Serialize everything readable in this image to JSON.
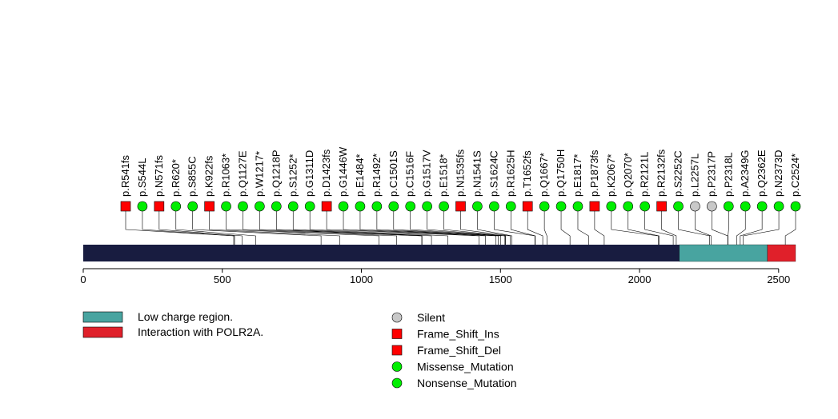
{
  "chart_data": {
    "type": "lollipop",
    "title": "",
    "xlabel": "",
    "ylabel": "",
    "protein_length": 2561,
    "xlim": [
      0,
      2561
    ],
    "xticks": [
      0,
      500,
      1000,
      1500,
      2000,
      2500
    ],
    "xtick_labels": [
      "0",
      "500",
      "1000",
      "1500",
      "2000",
      "2500"
    ],
    "colors": {
      "backbone": "#181C40",
      "low_charge": "#48A4A0",
      "polr2a": "#E0202A",
      "silent": "#C8C8C8",
      "frameshift": "#FF0000",
      "missense": "#00EE00",
      "nonsense": "#00EE00"
    },
    "regions": [
      {
        "name": "Low charge region.",
        "start": 2143,
        "end": 2460,
        "color_key": "low_charge"
      },
      {
        "name": "Interaction with POLR2A.",
        "start": 2460,
        "end": 2561,
        "color_key": "polr2a"
      }
    ],
    "mutations": [
      {
        "label": "p.R541fs",
        "position": 541,
        "type": "Frame_Shift_Del"
      },
      {
        "label": "p.S544L",
        "position": 544,
        "type": "Missense_Mutation"
      },
      {
        "label": "p.N571fs",
        "position": 571,
        "type": "Frame_Shift_Del"
      },
      {
        "label": "p.R620*",
        "position": 620,
        "type": "Nonsense_Mutation"
      },
      {
        "label": "p.S855C",
        "position": 855,
        "type": "Missense_Mutation"
      },
      {
        "label": "p.K922fs",
        "position": 922,
        "type": "Frame_Shift_Del"
      },
      {
        "label": "p.R1063*",
        "position": 1063,
        "type": "Nonsense_Mutation"
      },
      {
        "label": "p.Q1127E",
        "position": 1127,
        "type": "Missense_Mutation"
      },
      {
        "label": "p.W1217*",
        "position": 1217,
        "type": "Nonsense_Mutation"
      },
      {
        "label": "p.Q1218P",
        "position": 1218,
        "type": "Missense_Mutation"
      },
      {
        "label": "p.S1252*",
        "position": 1252,
        "type": "Nonsense_Mutation"
      },
      {
        "label": "p.G1311D",
        "position": 1311,
        "type": "Missense_Mutation"
      },
      {
        "label": "p.D1423fs",
        "position": 1423,
        "type": "Frame_Shift_Del"
      },
      {
        "label": "p.G1446W",
        "position": 1446,
        "type": "Missense_Mutation"
      },
      {
        "label": "p.E1484*",
        "position": 1484,
        "type": "Nonsense_Mutation"
      },
      {
        "label": "p.R1492*",
        "position": 1492,
        "type": "Nonsense_Mutation"
      },
      {
        "label": "p.C1501S",
        "position": 1501,
        "type": "Missense_Mutation"
      },
      {
        "label": "p.C1516F",
        "position": 1516,
        "type": "Missense_Mutation"
      },
      {
        "label": "p.G1517V",
        "position": 1517,
        "type": "Missense_Mutation"
      },
      {
        "label": "p.E1518*",
        "position": 1518,
        "type": "Nonsense_Mutation"
      },
      {
        "label": "p.N1535fs",
        "position": 1535,
        "type": "Frame_Shift_Del"
      },
      {
        "label": "p.N1541S",
        "position": 1541,
        "type": "Missense_Mutation"
      },
      {
        "label": "p.S1624C",
        "position": 1624,
        "type": "Missense_Mutation"
      },
      {
        "label": "p.R1625H",
        "position": 1625,
        "type": "Missense_Mutation"
      },
      {
        "label": "p.T1652fs",
        "position": 1652,
        "type": "Frame_Shift_Del"
      },
      {
        "label": "p.Q1667*",
        "position": 1667,
        "type": "Nonsense_Mutation"
      },
      {
        "label": "p.Q1750H",
        "position": 1750,
        "type": "Missense_Mutation"
      },
      {
        "label": "p.E1817*",
        "position": 1817,
        "type": "Nonsense_Mutation"
      },
      {
        "label": "p.P1873fs",
        "position": 1873,
        "type": "Frame_Shift_Del"
      },
      {
        "label": "p.K2067*",
        "position": 2067,
        "type": "Nonsense_Mutation"
      },
      {
        "label": "p.Q2070*",
        "position": 2070,
        "type": "Nonsense_Mutation"
      },
      {
        "label": "p.R2121L",
        "position": 2121,
        "type": "Missense_Mutation"
      },
      {
        "label": "p.R2132fs",
        "position": 2132,
        "type": "Frame_Shift_Del"
      },
      {
        "label": "p.S2252C",
        "position": 2252,
        "type": "Missense_Mutation"
      },
      {
        "label": "p.L2257L",
        "position": 2257,
        "type": "Silent"
      },
      {
        "label": "p.P2317P",
        "position": 2317,
        "type": "Silent"
      },
      {
        "label": "p.P2318L",
        "position": 2318,
        "type": "Missense_Mutation"
      },
      {
        "label": "p.A2349G",
        "position": 2349,
        "type": "Missense_Mutation"
      },
      {
        "label": "p.Q2362E",
        "position": 2362,
        "type": "Missense_Mutation"
      },
      {
        "label": "p.N2373D",
        "position": 2373,
        "type": "Missense_Mutation"
      },
      {
        "label": "p.C2524*",
        "position": 2524,
        "type": "Nonsense_Mutation"
      }
    ],
    "legend_regions": [
      {
        "label": "Low charge region.",
        "color_key": "low_charge"
      },
      {
        "label": "Interaction with POLR2A.",
        "color_key": "polr2a"
      }
    ],
    "legend_mutations": [
      {
        "label": "Silent",
        "shape": "circle",
        "color_key": "silent"
      },
      {
        "label": "Frame_Shift_Ins",
        "shape": "square",
        "color_key": "frameshift"
      },
      {
        "label": "Frame_Shift_Del",
        "shape": "square",
        "color_key": "frameshift"
      },
      {
        "label": "Missense_Mutation",
        "shape": "circle",
        "color_key": "missense"
      },
      {
        "label": "Nonsense_Mutation",
        "shape": "circle",
        "color_key": "nonsense"
      }
    ]
  }
}
